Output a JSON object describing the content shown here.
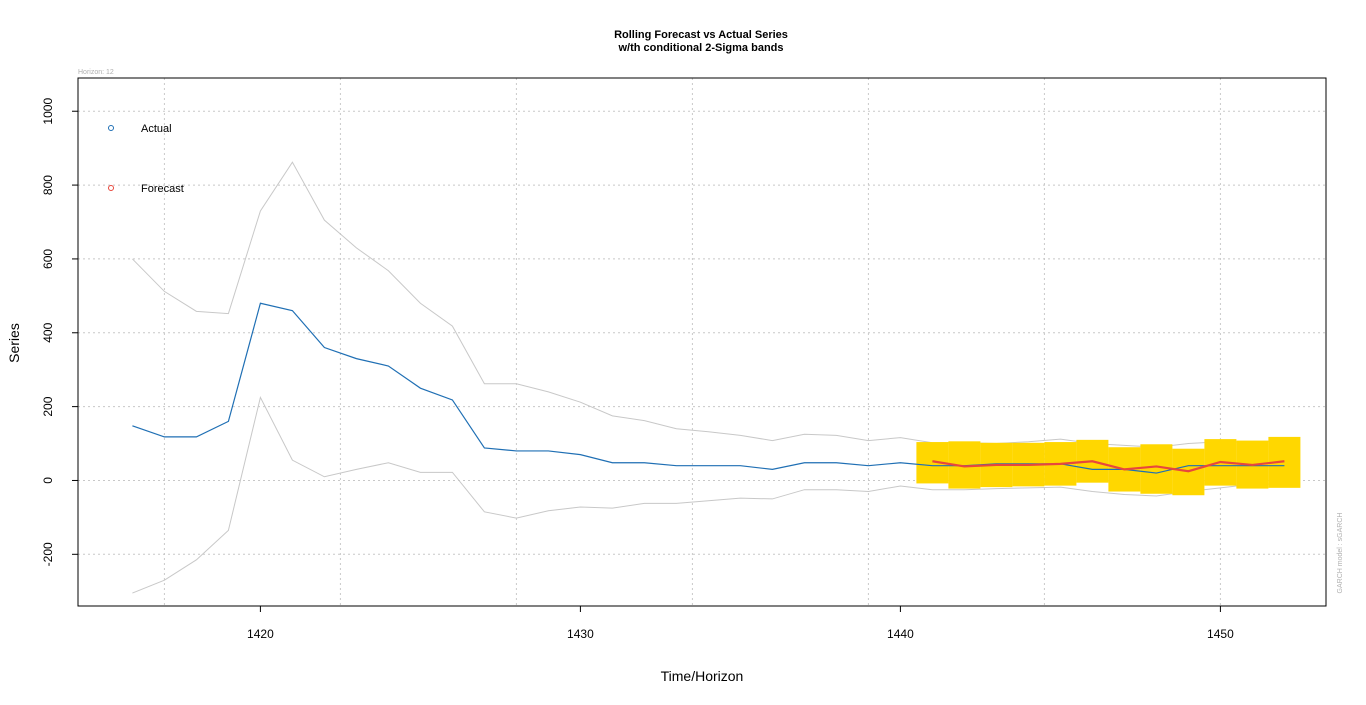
{
  "chart_data": {
    "type": "line",
    "title": "Rolling Forecast vs Actual Series",
    "subtitle": "w/th conditional 2-Sigma bands",
    "xlabel": "Time/Horizon",
    "ylabel": "Series",
    "xlim": [
      1414.3,
      1453.3
    ],
    "ylim": [
      -340,
      1090
    ],
    "x_ticks": [
      1420,
      1430,
      1440,
      1450
    ],
    "y_ticks": [
      -200,
      0,
      200,
      400,
      600,
      800,
      1000
    ],
    "grid": true,
    "legend_position": "top-left",
    "horizon_label": "Horizon: 12",
    "side_note": "GARCH model : sGARCH",
    "colors": {
      "actual": "#1f6fb4",
      "forecast": "#e8473c",
      "band_fill": "#ffd700",
      "envelope": "#c8c8c8",
      "grid": "#c8c8c8"
    },
    "legend": [
      {
        "label": "Actual",
        "color": "#1f6fb4"
      },
      {
        "label": "Forecast",
        "color": "#e8473c"
      }
    ],
    "series": [
      {
        "name": "Actual",
        "x": [
          1416,
          1417,
          1418,
          1419,
          1420,
          1421,
          1422,
          1423,
          1424,
          1425,
          1426,
          1427,
          1428,
          1429,
          1430,
          1431,
          1432,
          1433,
          1434,
          1435,
          1436,
          1437,
          1438,
          1439,
          1440,
          1441,
          1442,
          1443,
          1444,
          1445,
          1446,
          1447,
          1448,
          1449,
          1450,
          1451,
          1452
        ],
        "values": [
          148,
          118,
          118,
          160,
          480,
          460,
          360,
          330,
          310,
          250,
          218,
          88,
          80,
          80,
          70,
          48,
          48,
          40,
          40,
          40,
          30,
          48,
          48,
          40,
          48,
          40,
          40,
          45,
          45,
          45,
          30,
          30,
          20,
          40,
          40,
          40,
          40
        ]
      },
      {
        "name": "Forecast",
        "x": [
          1441,
          1442,
          1443,
          1444,
          1445,
          1446,
          1447,
          1448,
          1449,
          1450,
          1451,
          1452
        ],
        "values": [
          52,
          38,
          42,
          42,
          45,
          52,
          30,
          38,
          25,
          50,
          42,
          52
        ]
      }
    ],
    "upper_envelope": {
      "x": [
        1416,
        1417,
        1418,
        1419,
        1420,
        1421,
        1422,
        1423,
        1424,
        1425,
        1426,
        1427,
        1428,
        1429,
        1430,
        1431,
        1432,
        1433,
        1434,
        1435,
        1436,
        1437,
        1438,
        1439,
        1440,
        1441,
        1442,
        1443,
        1444,
        1445,
        1446,
        1447,
        1448,
        1449,
        1450,
        1451,
        1452
      ],
      "values": [
        600,
        512,
        458,
        452,
        730,
        862,
        705,
        630,
        568,
        480,
        418,
        262,
        262,
        240,
        212,
        175,
        162,
        140,
        132,
        122,
        108,
        125,
        122,
        108,
        116,
        102,
        102,
        100,
        105,
        112,
        100,
        95,
        90,
        100,
        105,
        102,
        110
      ]
    },
    "lower_envelope": {
      "x": [
        1416,
        1417,
        1418,
        1419,
        1420,
        1421,
        1422,
        1423,
        1424,
        1425,
        1426,
        1427,
        1428,
        1429,
        1430,
        1431,
        1432,
        1433,
        1434,
        1435,
        1436,
        1437,
        1438,
        1439,
        1440,
        1441,
        1442,
        1443,
        1444,
        1445,
        1446,
        1447,
        1448,
        1449,
        1450,
        1451,
        1452
      ],
      "values": [
        -305,
        -270,
        -215,
        -135,
        225,
        55,
        10,
        30,
        48,
        22,
        22,
        -85,
        -102,
        -82,
        -72,
        -75,
        -62,
        -62,
        -55,
        -48,
        -50,
        -25,
        -25,
        -30,
        -15,
        -25,
        -25,
        -22,
        -20,
        -18,
        -30,
        -38,
        -42,
        -30,
        -20,
        -10,
        -10
      ]
    },
    "sigma_bands": {
      "x": [
        1441,
        1442,
        1443,
        1444,
        1445,
        1446,
        1447,
        1448,
        1449,
        1450,
        1451,
        1452
      ],
      "upper": [
        104,
        106,
        102,
        102,
        104,
        110,
        90,
        98,
        86,
        112,
        108,
        118
      ],
      "lower": [
        -8,
        -22,
        -18,
        -16,
        -14,
        -6,
        -30,
        -36,
        -40,
        -14,
        -22,
        -20
      ]
    }
  }
}
